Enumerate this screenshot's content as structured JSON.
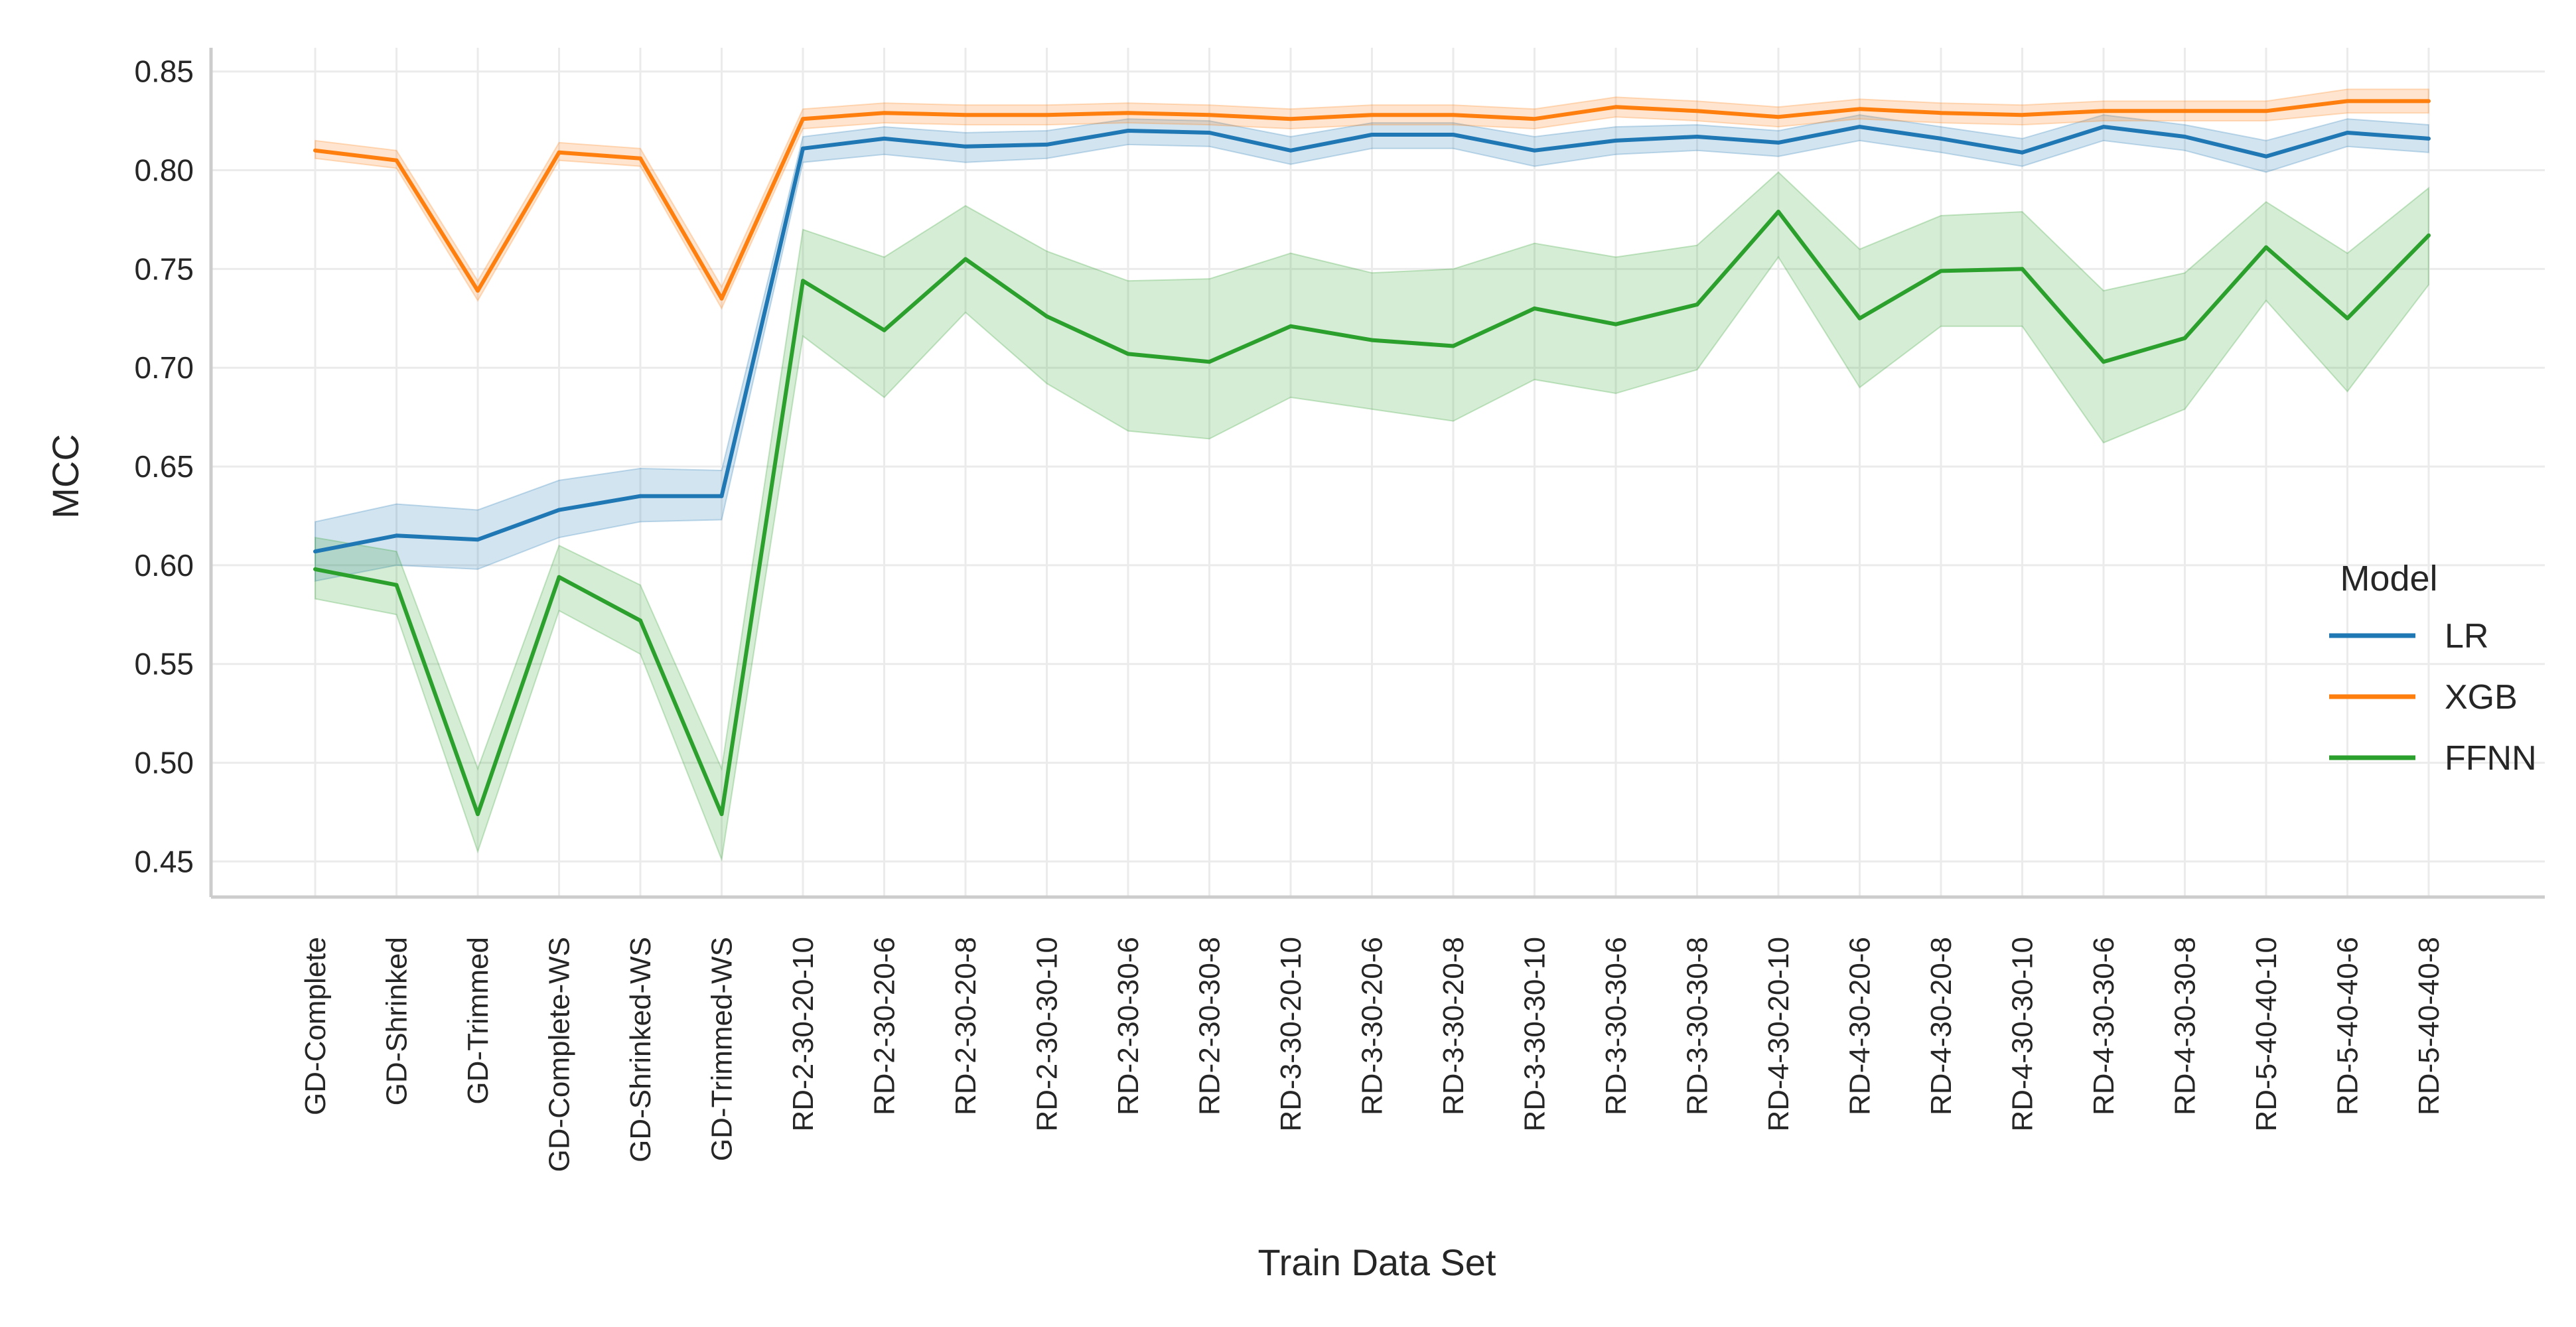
{
  "chart_data": {
    "type": "line",
    "xlabel": "Train Data Set",
    "ylabel": "MCC",
    "ylim": [
      0.432,
      0.862
    ],
    "yticks": [
      0.45,
      0.5,
      0.55,
      0.6,
      0.65,
      0.7,
      0.75,
      0.8,
      0.85
    ],
    "ytick_labels": [
      "0.45",
      "0.50",
      "0.55",
      "0.60",
      "0.65",
      "0.70",
      "0.75",
      "0.80",
      "0.85"
    ],
    "grid": true,
    "legend": {
      "title": "Model",
      "placement": "right"
    },
    "categories": [
      "GD-Complete",
      "GD-Shrinked",
      "GD-Trimmed",
      "GD-Complete-WS",
      "GD-Shrinked-WS",
      "GD-Trimmed-WS",
      "RD-2-30-20-10",
      "RD-2-30-20-6",
      "RD-2-30-20-8",
      "RD-2-30-30-10",
      "RD-2-30-30-6",
      "RD-2-30-30-8",
      "RD-3-30-20-10",
      "RD-3-30-20-6",
      "RD-3-30-20-8",
      "RD-3-30-30-10",
      "RD-3-30-30-6",
      "RD-3-30-30-8",
      "RD-4-30-20-10",
      "RD-4-30-20-6",
      "RD-4-30-20-8",
      "RD-4-30-30-10",
      "RD-4-30-30-6",
      "RD-4-30-30-8",
      "RD-5-40-40-10",
      "RD-5-40-40-6",
      "RD-5-40-40-8"
    ],
    "series": [
      {
        "name": "LR",
        "color": "#1f77b4",
        "values": [
          0.607,
          0.615,
          0.613,
          0.628,
          0.635,
          0.635,
          0.811,
          0.816,
          0.812,
          0.813,
          0.82,
          0.819,
          0.81,
          0.818,
          0.818,
          0.81,
          0.815,
          0.817,
          0.814,
          0.822,
          0.816,
          0.809,
          0.822,
          0.817,
          0.807,
          0.819,
          0.816
        ],
        "lower": [
          0.592,
          0.6,
          0.598,
          0.614,
          0.622,
          0.623,
          0.804,
          0.808,
          0.804,
          0.806,
          0.813,
          0.812,
          0.803,
          0.811,
          0.811,
          0.802,
          0.808,
          0.81,
          0.807,
          0.815,
          0.809,
          0.802,
          0.815,
          0.81,
          0.799,
          0.812,
          0.809
        ],
        "upper": [
          0.622,
          0.631,
          0.628,
          0.643,
          0.649,
          0.648,
          0.817,
          0.822,
          0.819,
          0.82,
          0.826,
          0.825,
          0.817,
          0.824,
          0.824,
          0.817,
          0.822,
          0.823,
          0.82,
          0.828,
          0.822,
          0.816,
          0.828,
          0.823,
          0.815,
          0.826,
          0.823
        ]
      },
      {
        "name": "XGB",
        "color": "#ff7f0e",
        "values": [
          0.81,
          0.805,
          0.739,
          0.809,
          0.806,
          0.735,
          0.826,
          0.829,
          0.828,
          0.828,
          0.829,
          0.828,
          0.826,
          0.828,
          0.828,
          0.826,
          0.832,
          0.83,
          0.827,
          0.831,
          0.829,
          0.828,
          0.83,
          0.83,
          0.83,
          0.835,
          0.835
        ],
        "lower": [
          0.806,
          0.801,
          0.734,
          0.805,
          0.802,
          0.73,
          0.821,
          0.824,
          0.823,
          0.823,
          0.824,
          0.823,
          0.821,
          0.823,
          0.823,
          0.821,
          0.827,
          0.825,
          0.822,
          0.826,
          0.824,
          0.823,
          0.825,
          0.825,
          0.825,
          0.829,
          0.829
        ],
        "upper": [
          0.815,
          0.81,
          0.744,
          0.814,
          0.811,
          0.741,
          0.831,
          0.834,
          0.833,
          0.833,
          0.834,
          0.833,
          0.831,
          0.833,
          0.833,
          0.831,
          0.837,
          0.835,
          0.832,
          0.836,
          0.834,
          0.833,
          0.835,
          0.835,
          0.835,
          0.841,
          0.841
        ]
      },
      {
        "name": "FFNN",
        "color": "#2ca02c",
        "values": [
          0.598,
          0.59,
          0.474,
          0.594,
          0.572,
          0.474,
          0.744,
          0.719,
          0.755,
          0.726,
          0.707,
          0.703,
          0.721,
          0.714,
          0.711,
          0.73,
          0.722,
          0.732,
          0.779,
          0.725,
          0.749,
          0.75,
          0.703,
          0.715,
          0.761,
          0.725,
          0.767
        ],
        "lower": [
          0.583,
          0.575,
          0.455,
          0.577,
          0.555,
          0.451,
          0.716,
          0.685,
          0.728,
          0.692,
          0.668,
          0.664,
          0.685,
          0.679,
          0.673,
          0.694,
          0.687,
          0.699,
          0.756,
          0.69,
          0.721,
          0.721,
          0.662,
          0.679,
          0.734,
          0.688,
          0.742
        ],
        "upper": [
          0.614,
          0.607,
          0.497,
          0.61,
          0.59,
          0.497,
          0.77,
          0.756,
          0.782,
          0.759,
          0.744,
          0.745,
          0.758,
          0.748,
          0.75,
          0.763,
          0.756,
          0.762,
          0.799,
          0.76,
          0.777,
          0.779,
          0.739,
          0.748,
          0.784,
          0.758,
          0.791
        ]
      }
    ]
  }
}
